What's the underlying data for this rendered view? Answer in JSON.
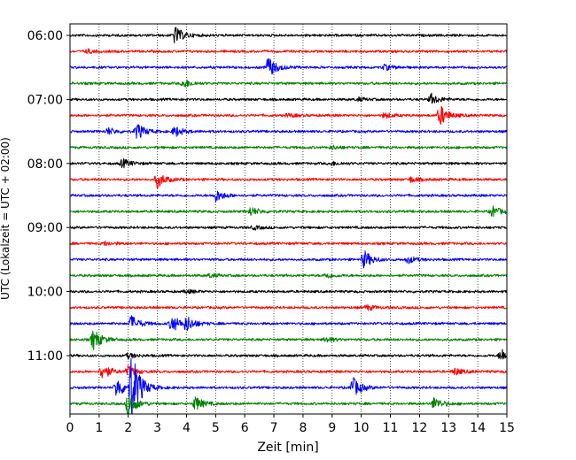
{
  "chart_data": {
    "type": "line",
    "title": "",
    "xlabel": "Zeit  [min]",
    "ylabel": "UTC (Lokalzeit = UTC + 02:00)",
    "xlim": [
      0,
      15
    ],
    "x_ticks": [
      "0",
      "1",
      "2",
      "3",
      "4",
      "5",
      "6",
      "7",
      "8",
      "9",
      "10",
      "11",
      "12",
      "13",
      "14",
      "15"
    ],
    "ylim": [
      "05:52:30",
      "11:59:59"
    ],
    "y_ticks": [
      "06:00",
      "07:00",
      "08:00",
      "09:00",
      "10:00",
      "11:00"
    ],
    "grid": "vertical dotted lines at every minute",
    "trace_interval_min": 15,
    "trace_colors": [
      "#000000",
      "#ff0000",
      "#0000ff",
      "#008000"
    ],
    "series": [
      {
        "start": "06:00",
        "color": "#000000",
        "events": [
          {
            "t": 3.6,
            "amp": 10
          }
        ]
      },
      {
        "start": "06:15",
        "color": "#ff0000",
        "events": [
          {
            "t": 0.6,
            "amp": 2
          }
        ]
      },
      {
        "start": "06:30",
        "color": "#0000ff",
        "events": [
          {
            "t": 6.8,
            "amp": 12
          },
          {
            "t": 10.8,
            "amp": 3
          }
        ]
      },
      {
        "start": "06:45",
        "color": "#008000",
        "events": [
          {
            "t": 3.9,
            "amp": 5
          }
        ]
      },
      {
        "start": "07:00",
        "color": "#000000",
        "events": [
          {
            "t": 12.4,
            "amp": 6
          },
          {
            "t": 9.9,
            "amp": 2
          }
        ]
      },
      {
        "start": "07:15",
        "color": "#ff0000",
        "events": [
          {
            "t": 12.7,
            "amp": 12
          },
          {
            "t": 10.8,
            "amp": 3
          },
          {
            "t": 7.5,
            "amp": 2
          }
        ]
      },
      {
        "start": "07:30",
        "color": "#0000ff",
        "events": [
          {
            "t": 2.3,
            "amp": 9
          },
          {
            "t": 3.6,
            "amp": 6
          },
          {
            "t": 1.3,
            "amp": 4
          }
        ]
      },
      {
        "start": "07:45",
        "color": "#008000",
        "events": [
          {
            "t": 9.0,
            "amp": 2
          }
        ]
      },
      {
        "start": "08:00",
        "color": "#000000",
        "events": [
          {
            "t": 1.8,
            "amp": 5
          },
          {
            "t": 9.0,
            "amp": 2
          }
        ]
      },
      {
        "start": "08:15",
        "color": "#ff0000",
        "events": [
          {
            "t": 3.0,
            "amp": 9
          },
          {
            "t": 11.7,
            "amp": 3
          }
        ]
      },
      {
        "start": "08:30",
        "color": "#0000ff",
        "events": [
          {
            "t": 5.0,
            "amp": 7
          }
        ]
      },
      {
        "start": "08:45",
        "color": "#008000",
        "events": [
          {
            "t": 6.2,
            "amp": 5
          },
          {
            "t": 14.5,
            "amp": 6
          }
        ]
      },
      {
        "start": "09:00",
        "color": "#000000",
        "events": [
          {
            "t": 6.3,
            "amp": 2
          }
        ]
      },
      {
        "start": "09:15",
        "color": "#ff0000",
        "events": [
          {
            "t": 1.2,
            "amp": 2
          }
        ]
      },
      {
        "start": "09:30",
        "color": "#0000ff",
        "events": [
          {
            "t": 10.1,
            "amp": 10
          },
          {
            "t": 11.6,
            "amp": 4
          }
        ]
      },
      {
        "start": "09:45",
        "color": "#008000",
        "events": [
          {
            "t": 8.8,
            "amp": 3
          },
          {
            "t": 4.8,
            "amp": 2
          }
        ]
      },
      {
        "start": "10:00",
        "color": "#000000",
        "events": [
          {
            "t": 4.0,
            "amp": 2
          }
        ]
      },
      {
        "start": "10:15",
        "color": "#ff0000",
        "events": [
          {
            "t": 10.2,
            "amp": 3
          }
        ]
      },
      {
        "start": "10:30",
        "color": "#0000ff",
        "events": [
          {
            "t": 3.5,
            "amp": 10
          },
          {
            "t": 4.0,
            "amp": 8
          },
          {
            "t": 2.1,
            "amp": 9
          }
        ]
      },
      {
        "start": "10:45",
        "color": "#008000",
        "events": [
          {
            "t": 0.8,
            "amp": 12
          },
          {
            "t": 8.8,
            "amp": 3
          }
        ]
      },
      {
        "start": "11:00",
        "color": "#000000",
        "events": [
          {
            "t": 14.8,
            "amp": 8
          },
          {
            "t": 2.0,
            "amp": 3
          }
        ]
      },
      {
        "start": "11:15",
        "color": "#ff0000",
        "events": [
          {
            "t": 1.1,
            "amp": 9
          },
          {
            "t": 2.0,
            "amp": 6
          },
          {
            "t": 13.2,
            "amp": 4
          }
        ]
      },
      {
        "start": "11:30",
        "color": "#0000ff",
        "events": [
          {
            "t": 2.1,
            "amp": 45
          },
          {
            "t": 1.6,
            "amp": 12
          },
          {
            "t": 9.7,
            "amp": 12
          }
        ]
      },
      {
        "start": "11:45",
        "color": "#008000",
        "events": [
          {
            "t": 4.3,
            "amp": 8
          },
          {
            "t": 12.5,
            "amp": 7
          },
          {
            "t": 2.0,
            "amp": 14
          }
        ]
      }
    ]
  }
}
